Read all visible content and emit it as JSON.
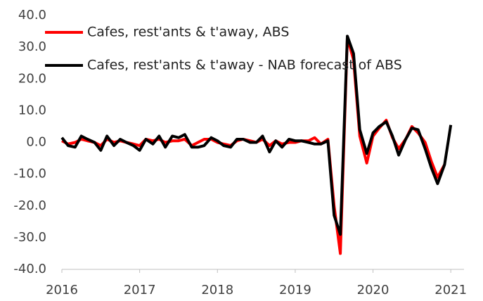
{
  "chart_data": {
    "type": "line",
    "x": [
      2016,
      2016.08,
      2016.17,
      2016.25,
      2016.33,
      2016.42,
      2016.5,
      2016.58,
      2016.67,
      2016.75,
      2016.83,
      2016.92,
      2017,
      2017.08,
      2017.17,
      2017.25,
      2017.33,
      2017.42,
      2017.5,
      2017.58,
      2017.67,
      2017.75,
      2017.83,
      2017.92,
      2018,
      2018.08,
      2018.17,
      2018.25,
      2018.33,
      2018.42,
      2018.5,
      2018.58,
      2018.67,
      2018.75,
      2018.83,
      2018.92,
      2019,
      2019.08,
      2019.17,
      2019.25,
      2019.33,
      2019.42,
      2019.5,
      2019.58,
      2019.67,
      2019.75,
      2019.83,
      2019.92,
      2020,
      2020.08,
      2020.17,
      2020.25,
      2020.33,
      2020.42,
      2020.5,
      2020.58,
      2020.67,
      2020.75,
      2020.83,
      2020.92,
      2021
    ],
    "series": [
      {
        "name": "Cafes, rest'ants & t'away, ABS",
        "color": "#ff0000",
        "values": [
          0.5,
          -0.5,
          0,
          1,
          0.5,
          0,
          -1,
          1,
          0,
          0.5,
          0,
          -0.5,
          -1,
          1,
          0.5,
          1,
          0,
          0.5,
          0.5,
          1,
          -1,
          0,
          1,
          1,
          0,
          -0.5,
          -1,
          0.5,
          1,
          0.5,
          0,
          1,
          -1,
          0.5,
          -0.5,
          0,
          0,
          0.5,
          0.5,
          1.5,
          -0.5,
          1,
          -20,
          -35,
          33,
          26,
          2,
          -6.5,
          2,
          4.5,
          7,
          1.5,
          -2,
          1,
          5,
          3,
          0,
          -6,
          -11,
          -7,
          null
        ]
      },
      {
        "name": "Cafes, rest'ants & t'away - NAB forecast of ABS",
        "color": "#000000",
        "values": [
          1.5,
          -1,
          -1.5,
          2,
          1,
          0,
          -2.5,
          2,
          -1,
          1,
          0,
          -1,
          -2.5,
          1,
          -0.5,
          2,
          -1.5,
          2,
          1.5,
          2.5,
          -1.5,
          -1.5,
          -1,
          1.5,
          0.5,
          -1,
          -1.5,
          1,
          1,
          0,
          0,
          2,
          -3,
          0.5,
          -1.5,
          1,
          0.5,
          0.5,
          0,
          -0.5,
          -0.5,
          0.5,
          -23,
          -29,
          33.5,
          28,
          4,
          -3.5,
          3,
          5,
          6.5,
          2,
          -4,
          1,
          4.5,
          4,
          -2,
          -8,
          -13,
          -7,
          5.5
        ]
      }
    ],
    "xlim": [
      2016,
      2021.17
    ],
    "xticks": [
      2016,
      2017,
      2018,
      2019,
      2020,
      2021
    ],
    "ylim": [
      -40,
      40
    ],
    "yticks": [
      {
        "value": -40,
        "label": "-40.0"
      },
      {
        "value": -30,
        "label": "-30.0"
      },
      {
        "value": -20,
        "label": "-20.0"
      },
      {
        "value": -10,
        "label": "-10.0"
      },
      {
        "value": 0,
        "label": "0.0"
      },
      {
        "value": 10,
        "label": "10.0"
      },
      {
        "value": 20,
        "label": "20.0"
      },
      {
        "value": 30,
        "label": "30.0"
      },
      {
        "value": 40,
        "label": "40.0"
      }
    ],
    "grid": false,
    "legend": "top-left"
  }
}
